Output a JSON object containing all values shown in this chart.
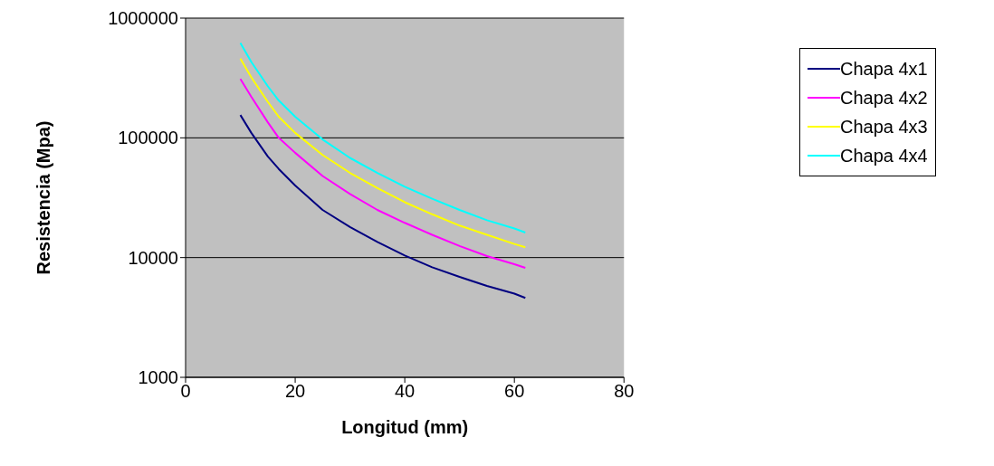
{
  "chart_data": {
    "type": "line",
    "xlabel": "Longitud (mm)",
    "ylabel": "Resistencia (Mpa)",
    "x": [
      10,
      12,
      15,
      17,
      20,
      25,
      30,
      35,
      40,
      45,
      50,
      55,
      60,
      62
    ],
    "series": [
      {
        "name": "Chapa 4x1",
        "color": "#000080",
        "values": [
          155000,
          110000,
          70000,
          55000,
          40000,
          25000,
          18000,
          13500,
          10400,
          8300,
          6900,
          5800,
          5000,
          4600
        ]
      },
      {
        "name": "Chapa 4x2",
        "color": "#ff00ff",
        "values": [
          310000,
          220000,
          135000,
          100000,
          75000,
          48000,
          34000,
          25000,
          19500,
          15500,
          12500,
          10300,
          8800,
          8200
        ]
      },
      {
        "name": "Chapa 4x3",
        "color": "#ffff00",
        "values": [
          460000,
          320000,
          200000,
          150000,
          110000,
          72000,
          51000,
          38000,
          29000,
          23000,
          18500,
          15500,
          13000,
          12200
        ]
      },
      {
        "name": "Chapa 4x4",
        "color": "#00ffff",
        "values": [
          620000,
          430000,
          270000,
          205000,
          150000,
          97000,
          68000,
          51000,
          39000,
          31000,
          25000,
          20500,
          17500,
          16200
        ]
      }
    ],
    "xlim": [
      0,
      80
    ],
    "xticks": [
      0,
      20,
      40,
      60,
      80
    ],
    "ylim": [
      1000,
      1000000
    ],
    "yticks": [
      1000,
      10000,
      100000,
      1000000
    ],
    "log": true,
    "grid": "y",
    "legend": "right",
    "marker": "none",
    "line_style": "solid"
  }
}
